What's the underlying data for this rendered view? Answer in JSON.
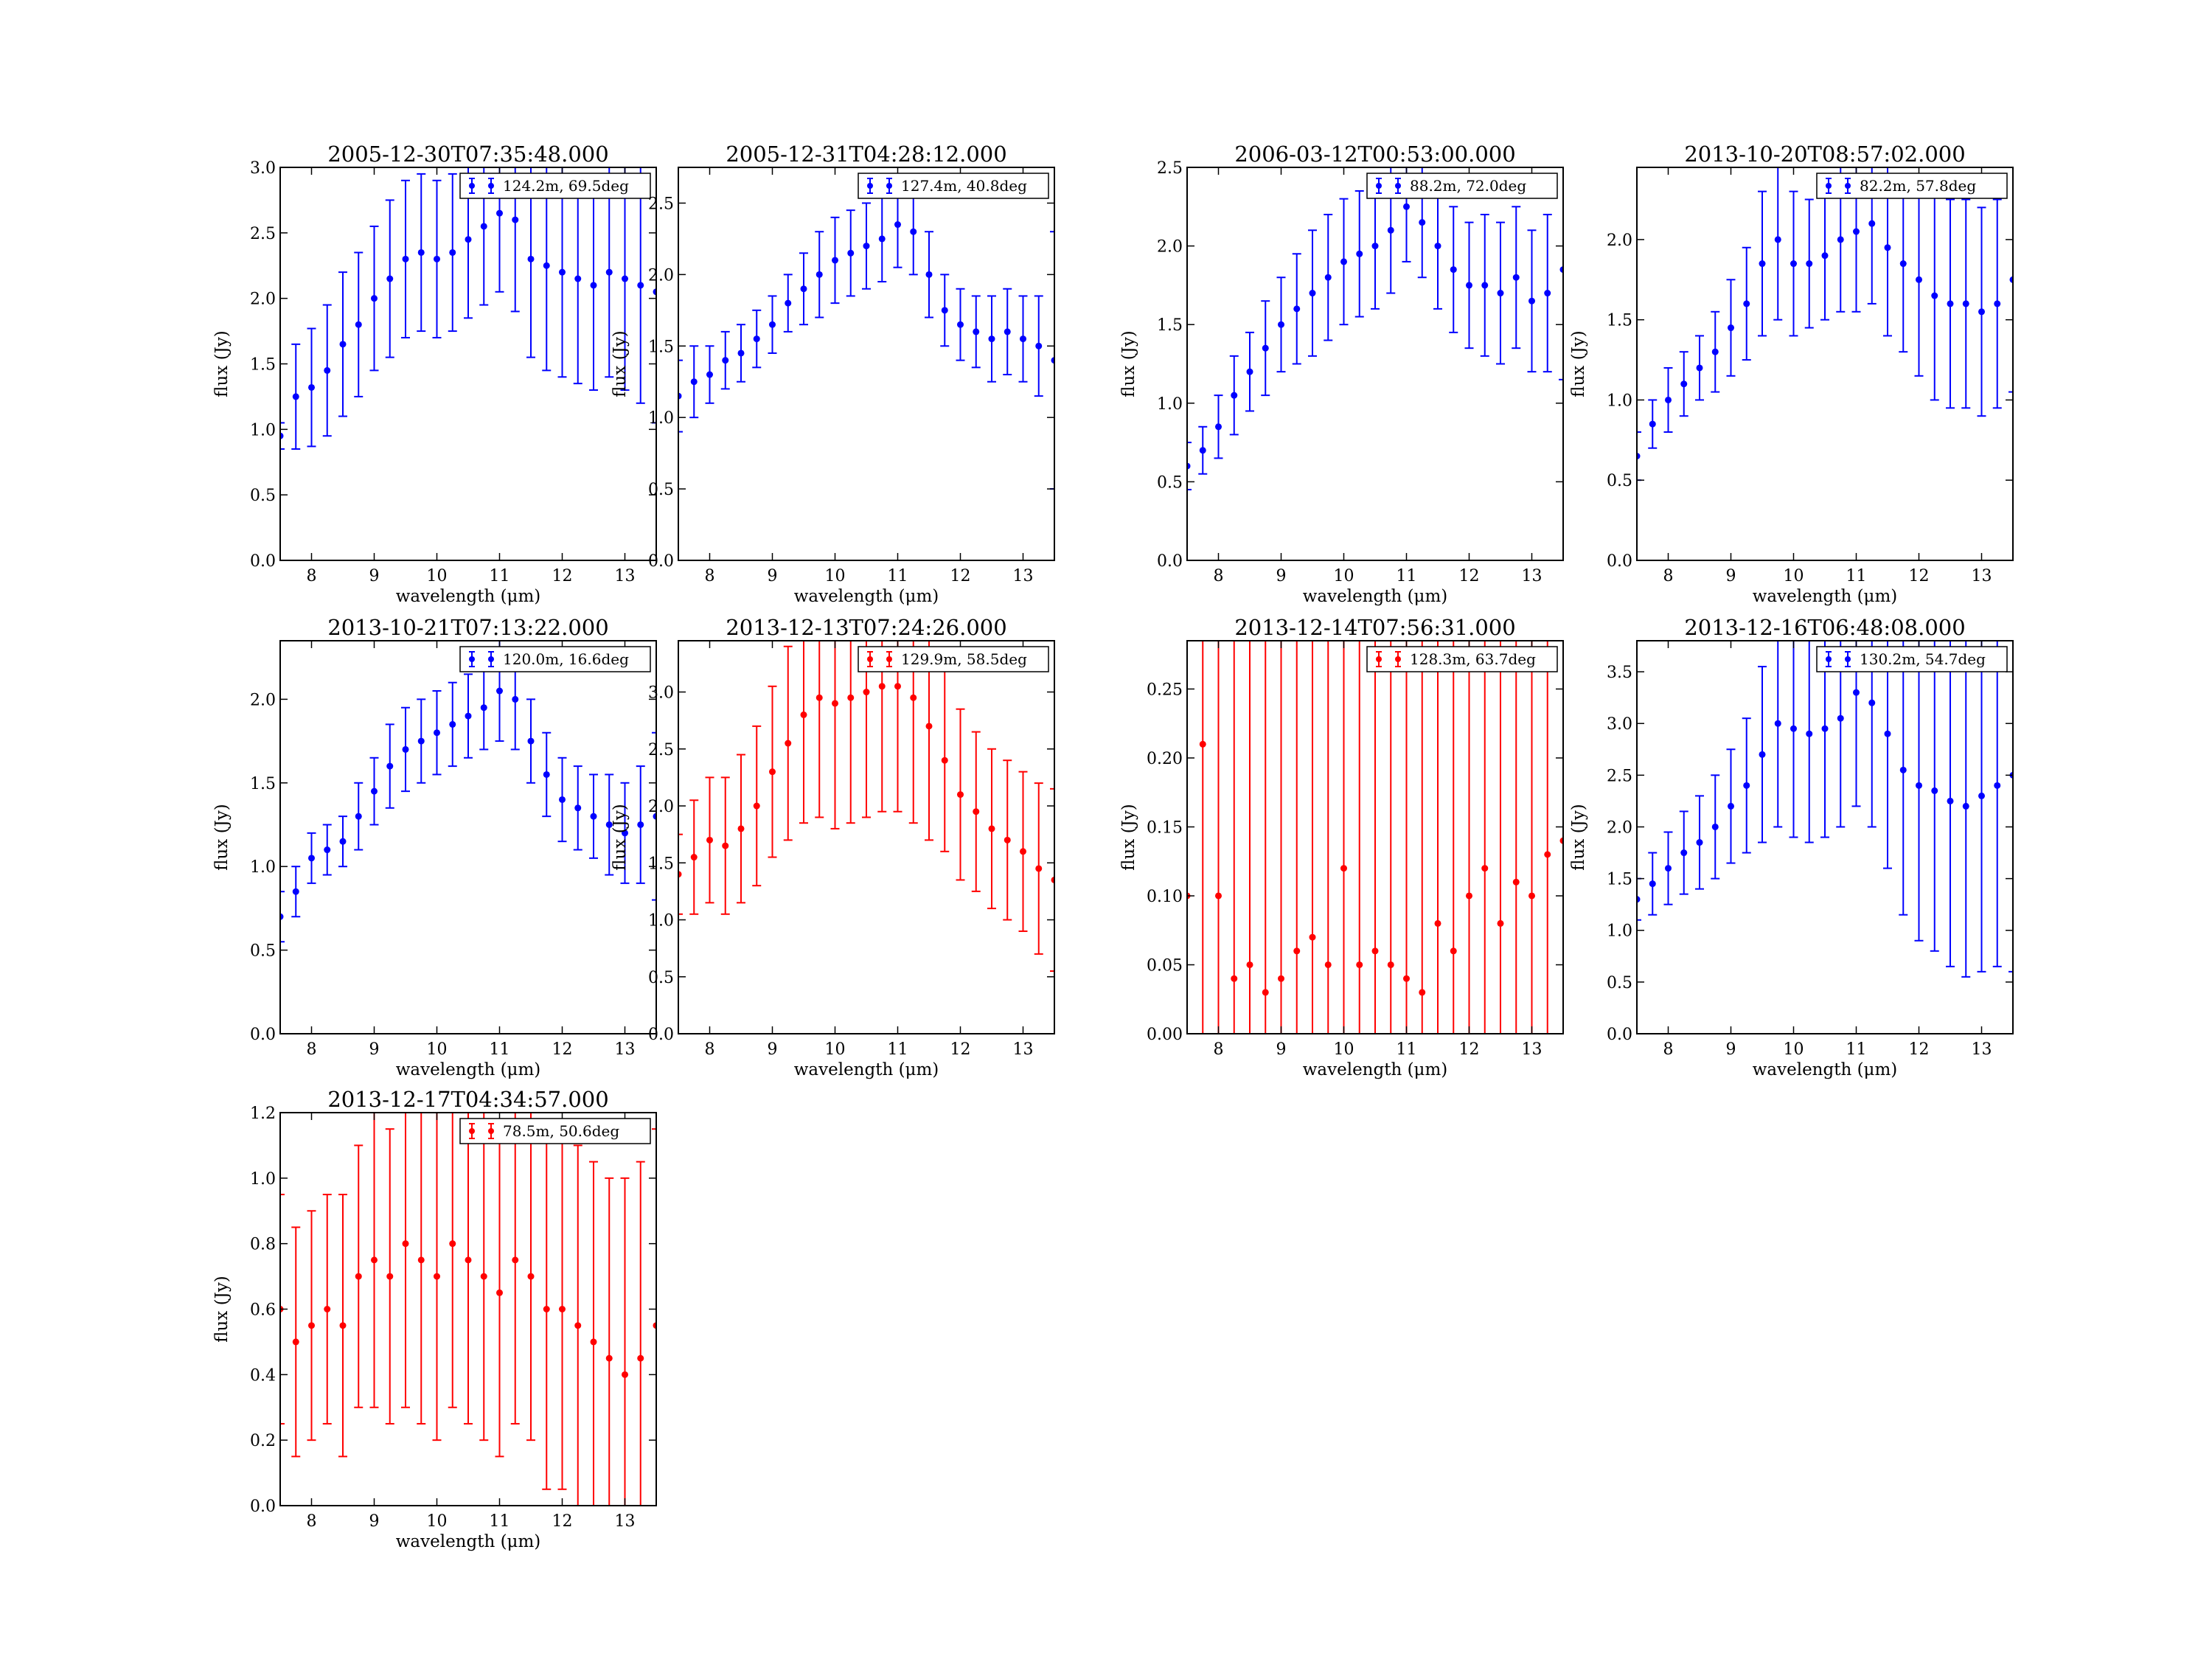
{
  "chart_data": [
    {
      "type": "scatter",
      "title": "2005-12-30T07:35:48.000",
      "xlabel": "wavelength (μm)",
      "ylabel": "flux (Jy)",
      "xlim": [
        7.5,
        13.5
      ],
      "ylim": [
        0.0,
        3.0
      ],
      "xticks": [
        8,
        9,
        10,
        11,
        12,
        13
      ],
      "yticks": [
        "0.0",
        "0.5",
        "1.0",
        "1.5",
        "2.0",
        "2.5",
        "3.0"
      ],
      "legend": "124.2m, 69.5deg",
      "legend_position": "top-right",
      "color": "#0000ff",
      "x": [
        7.5,
        7.75,
        8.0,
        8.25,
        8.5,
        8.75,
        9.0,
        9.25,
        9.5,
        9.75,
        10.0,
        10.25,
        10.5,
        10.75,
        11.0,
        11.25,
        11.5,
        11.75,
        12.0,
        12.25,
        12.5,
        12.75,
        13.0,
        13.25,
        13.5
      ],
      "y": [
        0.95,
        1.25,
        1.32,
        1.45,
        1.65,
        1.8,
        2.0,
        2.15,
        2.3,
        2.35,
        2.3,
        2.35,
        2.45,
        2.55,
        2.65,
        2.6,
        2.3,
        2.25,
        2.2,
        2.15,
        2.1,
        2.2,
        2.15,
        2.1,
        2.05
      ],
      "yerr": [
        0.1,
        0.4,
        0.45,
        0.5,
        0.55,
        0.55,
        0.55,
        0.6,
        0.6,
        0.6,
        0.6,
        0.6,
        0.6,
        0.6,
        0.6,
        0.7,
        0.75,
        0.8,
        0.8,
        0.8,
        0.8,
        0.8,
        0.85,
        0.9,
        1.0
      ]
    },
    {
      "type": "scatter",
      "title": "2005-12-31T04:28:12.000",
      "xlabel": "wavelength (μm)",
      "ylabel": "flux (Jy)",
      "xlim": [
        7.5,
        13.5
      ],
      "ylim": [
        0.0,
        2.75
      ],
      "xticks": [
        8,
        9,
        10,
        11,
        12,
        13
      ],
      "yticks": [
        "0.0",
        "0.5",
        "1.0",
        "1.5",
        "2.0",
        "2.5"
      ],
      "legend": "127.4m, 40.8deg",
      "legend_position": "top-right",
      "color": "#0000ff",
      "x": [
        7.5,
        7.75,
        8.0,
        8.25,
        8.5,
        8.75,
        9.0,
        9.25,
        9.5,
        9.75,
        10.0,
        10.25,
        10.5,
        10.75,
        11.0,
        11.25,
        11.5,
        11.75,
        12.0,
        12.25,
        12.5,
        12.75,
        13.0,
        13.25,
        13.5
      ],
      "y": [
        1.15,
        1.25,
        1.3,
        1.4,
        1.45,
        1.55,
        1.65,
        1.8,
        1.9,
        2.0,
        2.1,
        2.15,
        2.2,
        2.25,
        2.35,
        2.3,
        2.0,
        1.75,
        1.65,
        1.6,
        1.55,
        1.6,
        1.55,
        1.5,
        1.4
      ],
      "yerr": [
        0.25,
        0.25,
        0.2,
        0.2,
        0.2,
        0.2,
        0.2,
        0.2,
        0.25,
        0.3,
        0.3,
        0.3,
        0.3,
        0.3,
        0.3,
        0.3,
        0.3,
        0.25,
        0.25,
        0.25,
        0.3,
        0.3,
        0.3,
        0.35,
        0.9
      ]
    },
    {
      "type": "scatter",
      "title": "2006-03-12T00:53:00.000",
      "xlabel": "wavelength (μm)",
      "ylabel": "flux (Jy)",
      "xlim": [
        7.5,
        13.5
      ],
      "ylim": [
        0.0,
        2.5
      ],
      "xticks": [
        8,
        9,
        10,
        11,
        12,
        13
      ],
      "yticks": [
        "0.0",
        "0.5",
        "1.0",
        "1.5",
        "2.0",
        "2.5"
      ],
      "legend": "88.2m, 72.0deg",
      "legend_position": "top-right",
      "color": "#0000ff",
      "x": [
        7.5,
        7.75,
        8.0,
        8.25,
        8.5,
        8.75,
        9.0,
        9.25,
        9.5,
        9.75,
        10.0,
        10.25,
        10.5,
        10.75,
        11.0,
        11.25,
        11.5,
        11.75,
        12.0,
        12.25,
        12.5,
        12.75,
        13.0,
        13.25,
        13.5
      ],
      "y": [
        0.6,
        0.7,
        0.85,
        1.05,
        1.2,
        1.35,
        1.5,
        1.6,
        1.7,
        1.8,
        1.9,
        1.95,
        2.0,
        2.1,
        2.25,
        2.15,
        2.0,
        1.85,
        1.75,
        1.75,
        1.7,
        1.8,
        1.65,
        1.7,
        1.85
      ],
      "yerr": [
        0.15,
        0.15,
        0.2,
        0.25,
        0.25,
        0.3,
        0.3,
        0.35,
        0.4,
        0.4,
        0.4,
        0.4,
        0.4,
        0.4,
        0.35,
        0.35,
        0.4,
        0.4,
        0.4,
        0.45,
        0.45,
        0.45,
        0.45,
        0.5,
        0.7
      ]
    },
    {
      "type": "scatter",
      "title": "2013-10-20T08:57:02.000",
      "xlabel": "wavelength (μm)",
      "ylabel": "flux (Jy)",
      "xlim": [
        7.5,
        13.5
      ],
      "ylim": [
        0.0,
        2.45
      ],
      "xticks": [
        8,
        9,
        10,
        11,
        12,
        13
      ],
      "yticks": [
        "0.0",
        "0.5",
        "1.0",
        "1.5",
        "2.0"
      ],
      "legend": "82.2m, 57.8deg",
      "legend_position": "top-right",
      "color": "#0000ff",
      "x": [
        7.5,
        7.75,
        8.0,
        8.25,
        8.5,
        8.75,
        9.0,
        9.25,
        9.5,
        9.75,
        10.0,
        10.25,
        10.5,
        10.75,
        11.0,
        11.25,
        11.5,
        11.75,
        12.0,
        12.25,
        12.5,
        12.75,
        13.0,
        13.25,
        13.5
      ],
      "y": [
        0.65,
        0.85,
        1.0,
        1.1,
        1.2,
        1.3,
        1.45,
        1.6,
        1.85,
        2.0,
        1.85,
        1.85,
        1.9,
        2.0,
        2.05,
        2.1,
        1.95,
        1.85,
        1.75,
        1.65,
        1.6,
        1.6,
        1.55,
        1.6,
        1.75
      ],
      "yerr": [
        0.15,
        0.15,
        0.2,
        0.2,
        0.2,
        0.25,
        0.3,
        0.35,
        0.45,
        0.5,
        0.45,
        0.4,
        0.4,
        0.45,
        0.5,
        0.5,
        0.55,
        0.55,
        0.6,
        0.65,
        0.65,
        0.65,
        0.65,
        0.65,
        0.7
      ]
    },
    {
      "type": "scatter",
      "title": "2013-10-21T07:13:22.000",
      "xlabel": "wavelength (μm)",
      "ylabel": "flux (Jy)",
      "xlim": [
        7.5,
        13.5
      ],
      "ylim": [
        0.0,
        2.35
      ],
      "xticks": [
        8,
        9,
        10,
        11,
        12,
        13
      ],
      "yticks": [
        "0.0",
        "0.5",
        "1.0",
        "1.5",
        "2.0"
      ],
      "legend": "120.0m, 16.6deg",
      "legend_position": "top-right",
      "color": "#0000ff",
      "x": [
        7.5,
        7.75,
        8.0,
        8.25,
        8.5,
        8.75,
        9.0,
        9.25,
        9.5,
        9.75,
        10.0,
        10.25,
        10.5,
        10.75,
        11.0,
        11.25,
        11.5,
        11.75,
        12.0,
        12.25,
        12.5,
        12.75,
        13.0,
        13.25,
        13.5
      ],
      "y": [
        0.7,
        0.85,
        1.05,
        1.1,
        1.15,
        1.3,
        1.45,
        1.6,
        1.7,
        1.75,
        1.8,
        1.85,
        1.9,
        1.95,
        2.05,
        2.0,
        1.75,
        1.55,
        1.4,
        1.35,
        1.3,
        1.25,
        1.2,
        1.25,
        1.3
      ],
      "yerr": [
        0.15,
        0.15,
        0.15,
        0.15,
        0.15,
        0.2,
        0.2,
        0.25,
        0.25,
        0.25,
        0.25,
        0.25,
        0.25,
        0.25,
        0.3,
        0.3,
        0.25,
        0.25,
        0.25,
        0.25,
        0.25,
        0.3,
        0.3,
        0.35,
        0.5
      ]
    },
    {
      "type": "scatter",
      "title": "2013-12-13T07:24:26.000",
      "xlabel": "wavelength (μm)",
      "ylabel": "flux (Jy)",
      "xlim": [
        7.5,
        13.5
      ],
      "ylim": [
        0.0,
        3.45
      ],
      "xticks": [
        8,
        9,
        10,
        11,
        12,
        13
      ],
      "yticks": [
        "0.0",
        "0.5",
        "1.0",
        "1.5",
        "2.0",
        "2.5",
        "3.0"
      ],
      "legend": "129.9m, 58.5deg",
      "legend_position": "top-right",
      "color": "#ff0000",
      "x": [
        7.5,
        7.75,
        8.0,
        8.25,
        8.5,
        8.75,
        9.0,
        9.25,
        9.5,
        9.75,
        10.0,
        10.25,
        10.5,
        10.75,
        11.0,
        11.25,
        11.5,
        11.75,
        12.0,
        12.25,
        12.5,
        12.75,
        13.0,
        13.25,
        13.5
      ],
      "y": [
        1.4,
        1.55,
        1.7,
        1.65,
        1.8,
        2.0,
        2.3,
        2.55,
        2.8,
        2.95,
        2.9,
        2.95,
        3.0,
        3.05,
        3.05,
        2.95,
        2.7,
        2.4,
        2.1,
        1.95,
        1.8,
        1.7,
        1.6,
        1.45,
        1.35
      ],
      "yerr": [
        0.35,
        0.5,
        0.55,
        0.6,
        0.65,
        0.7,
        0.75,
        0.85,
        0.95,
        1.05,
        1.1,
        1.1,
        1.1,
        1.1,
        1.1,
        1.1,
        1.0,
        0.8,
        0.75,
        0.7,
        0.7,
        0.7,
        0.7,
        0.75,
        0.8
      ]
    },
    {
      "type": "scatter",
      "title": "2013-12-14T07:56:31.000",
      "xlabel": "wavelength (μm)",
      "ylabel": "flux (Jy)",
      "xlim": [
        7.5,
        13.5
      ],
      "ylim": [
        0.0,
        0.285
      ],
      "xticks": [
        8,
        9,
        10,
        11,
        12,
        13
      ],
      "yticks": [
        "0.00",
        "0.05",
        "0.10",
        "0.15",
        "0.20",
        "0.25"
      ],
      "legend": "128.3m, 63.7deg",
      "legend_position": "top-right",
      "color": "#ff0000",
      "x": [
        7.5,
        7.75,
        8.0,
        8.25,
        8.5,
        8.75,
        9.0,
        9.25,
        9.5,
        9.75,
        10.0,
        10.25,
        10.5,
        10.75,
        11.0,
        11.25,
        11.5,
        11.75,
        12.0,
        12.25,
        12.5,
        12.75,
        13.0,
        13.25,
        13.5
      ],
      "y": [
        0.1,
        0.21,
        0.1,
        0.04,
        0.05,
        0.03,
        0.04,
        0.06,
        0.07,
        0.05,
        0.12,
        0.05,
        0.06,
        0.05,
        0.04,
        0.03,
        0.08,
        0.06,
        0.1,
        0.12,
        0.08,
        0.11,
        0.1,
        0.13,
        0.14
      ],
      "yerr": [
        0.3,
        0.3,
        0.3,
        0.3,
        0.3,
        0.3,
        0.3,
        0.3,
        0.3,
        0.3,
        0.3,
        0.3,
        0.3,
        0.3,
        0.3,
        0.3,
        0.3,
        0.3,
        0.3,
        0.3,
        0.3,
        0.3,
        0.3,
        0.3,
        0.3
      ]
    },
    {
      "type": "scatter",
      "title": "2013-12-16T06:48:08.000",
      "xlabel": "wavelength (μm)",
      "ylabel": "flux (Jy)",
      "xlim": [
        7.5,
        13.5
      ],
      "ylim": [
        0.0,
        3.8
      ],
      "xticks": [
        8,
        9,
        10,
        11,
        12,
        13
      ],
      "yticks": [
        "0.0",
        "0.5",
        "1.0",
        "1.5",
        "2.0",
        "2.5",
        "3.0",
        "3.5"
      ],
      "legend": "130.2m, 54.7deg",
      "legend_position": "top-right",
      "color": "#0000ff",
      "x": [
        7.5,
        7.75,
        8.0,
        8.25,
        8.5,
        8.75,
        9.0,
        9.25,
        9.5,
        9.75,
        10.0,
        10.25,
        10.5,
        10.75,
        11.0,
        11.25,
        11.5,
        11.75,
        12.0,
        12.25,
        12.5,
        12.75,
        13.0,
        13.25,
        13.5
      ],
      "y": [
        1.3,
        1.45,
        1.6,
        1.75,
        1.85,
        2.0,
        2.2,
        2.4,
        2.7,
        3.0,
        2.95,
        2.9,
        2.95,
        3.05,
        3.3,
        3.2,
        2.9,
        2.55,
        2.4,
        2.35,
        2.25,
        2.2,
        2.3,
        2.4,
        2.5
      ],
      "yerr": [
        0.2,
        0.3,
        0.35,
        0.4,
        0.45,
        0.5,
        0.55,
        0.65,
        0.85,
        1.0,
        1.05,
        1.05,
        1.05,
        1.05,
        1.1,
        1.2,
        1.3,
        1.4,
        1.5,
        1.55,
        1.6,
        1.65,
        1.7,
        1.75,
        1.9
      ]
    },
    {
      "type": "scatter",
      "title": "2013-12-17T04:34:57.000",
      "xlabel": "wavelength (μm)",
      "ylabel": "flux (Jy)",
      "xlim": [
        7.5,
        13.5
      ],
      "ylim": [
        0.0,
        1.2
      ],
      "xticks": [
        8,
        9,
        10,
        11,
        12,
        13
      ],
      "yticks": [
        "0.0",
        "0.2",
        "0.4",
        "0.6",
        "0.8",
        "1.0",
        "1.2"
      ],
      "legend": "78.5m, 50.6deg",
      "legend_position": "top-right",
      "color": "#ff0000",
      "x": [
        7.5,
        7.75,
        8.0,
        8.25,
        8.5,
        8.75,
        9.0,
        9.25,
        9.5,
        9.75,
        10.0,
        10.25,
        10.5,
        10.75,
        11.0,
        11.25,
        11.5,
        11.75,
        12.0,
        12.25,
        12.5,
        12.75,
        13.0,
        13.25,
        13.5
      ],
      "y": [
        0.6,
        0.5,
        0.55,
        0.6,
        0.55,
        0.7,
        0.75,
        0.7,
        0.8,
        0.75,
        0.7,
        0.8,
        0.75,
        0.7,
        0.65,
        0.75,
        0.7,
        0.6,
        0.6,
        0.55,
        0.5,
        0.45,
        0.4,
        0.45,
        0.55
      ],
      "yerr": [
        0.35,
        0.35,
        0.35,
        0.35,
        0.4,
        0.4,
        0.45,
        0.45,
        0.5,
        0.5,
        0.5,
        0.5,
        0.5,
        0.5,
        0.5,
        0.5,
        0.5,
        0.55,
        0.55,
        0.55,
        0.55,
        0.55,
        0.6,
        0.6,
        0.6
      ]
    }
  ]
}
